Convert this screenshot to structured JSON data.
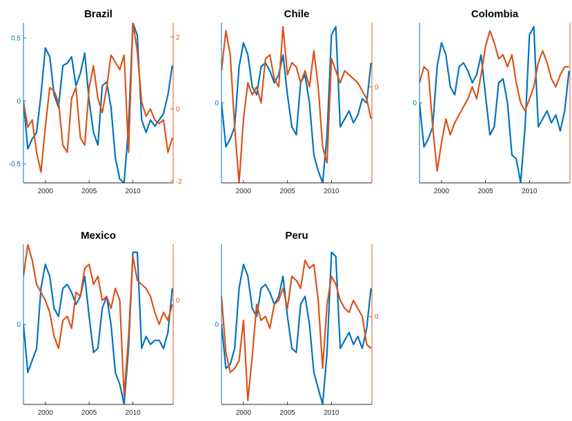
{
  "colors": {
    "left_series": "#0072BD",
    "right_series": "#D95319",
    "axes_frame": "#262626"
  },
  "chart_data": [
    {
      "type": "line",
      "title": "Brazil",
      "x_range": [
        1997.5,
        2014.6
      ],
      "x_ticks": [
        2000,
        2005,
        2010
      ],
      "left_axis": {
        "range": [
          -0.65,
          0.62
        ],
        "ticks": [
          0.5,
          0,
          -0.5
        ],
        "tick_labels": [
          "0.5",
          "0",
          "-0.5"
        ],
        "color": "#0072BD"
      },
      "right_axis": {
        "range": [
          -2.05,
          2.4
        ],
        "ticks": [
          2,
          0,
          -2
        ],
        "tick_labels": [
          "2",
          "0",
          "-2"
        ],
        "color": "#D95319"
      },
      "series": [
        {
          "axis": "left",
          "color": "#0072BD",
          "x": [
            1997.5,
            1998,
            1998.5,
            1999,
            1999.5,
            2000,
            2000.5,
            2001,
            2001.5,
            2002,
            2002.5,
            2003,
            2003.5,
            2004,
            2004.5,
            2005,
            2005.5,
            2006,
            2006.5,
            2007,
            2007.5,
            2008,
            2008.5,
            2009,
            2009.5,
            2010,
            2010.5,
            2011,
            2011.5,
            2012,
            2012.5,
            2013,
            2013.5,
            2014,
            2014.5
          ],
          "y": [
            0.0,
            -0.38,
            -0.3,
            -0.25,
            0.05,
            0.42,
            0.35,
            0.05,
            -0.05,
            0.28,
            0.3,
            0.35,
            0.12,
            0.22,
            0.38,
            0.0,
            -0.25,
            -0.35,
            0.12,
            0.15,
            -0.05,
            -0.45,
            -0.62,
            -0.65,
            -0.2,
            0.62,
            0.52,
            -0.15,
            -0.25,
            -0.15,
            -0.2,
            -0.15,
            -0.1,
            0.05,
            0.28
          ]
        },
        {
          "axis": "right",
          "color": "#D95319",
          "x": [
            1997.5,
            1998,
            1998.5,
            1999,
            1999.5,
            2000,
            2000.5,
            2001,
            2001.5,
            2002,
            2002.5,
            2003,
            2003.5,
            2004,
            2004.5,
            2005,
            2005.5,
            2006,
            2006.5,
            2007,
            2007.5,
            2008,
            2008.5,
            2009,
            2009.5,
            2010,
            2010.5,
            2011,
            2011.5,
            2012,
            2012.5,
            2013,
            2013.5,
            2014,
            2014.5
          ],
          "y": [
            0.2,
            -0.5,
            -0.3,
            -1.2,
            -1.75,
            -0.5,
            0.6,
            0.5,
            0.2,
            -1.0,
            -1.2,
            0.3,
            0.6,
            -0.8,
            -1.0,
            0.6,
            1.2,
            0.3,
            -0.1,
            0.6,
            1.5,
            1.3,
            1.1,
            1.5,
            -1.2,
            2.4,
            1.6,
            0.2,
            -0.2,
            0.0,
            -0.3,
            -0.4,
            -0.3,
            -1.2,
            -0.8
          ]
        }
      ]
    },
    {
      "type": "line",
      "title": "Chile",
      "x_range": [
        1997.5,
        2014.6
      ],
      "x_ticks": [
        2000,
        2005,
        2010
      ],
      "left_axis": {
        "range": [
          -1.0,
          1.0
        ],
        "ticks": [
          0
        ],
        "tick_labels": [
          "0"
        ],
        "color": "#0072BD"
      },
      "right_axis": {
        "range": [
          -1.0,
          1.0
        ],
        "ticks": [
          0.2
        ],
        "tick_labels": [
          "0"
        ],
        "color": "#D95319"
      },
      "series": [
        {
          "axis": "left",
          "color": "#0072BD",
          "x": [
            1997.5,
            1998,
            1998.5,
            1999,
            1999.5,
            2000,
            2000.5,
            2001,
            2001.5,
            2002,
            2002.5,
            2003,
            2003.5,
            2004,
            2004.5,
            2005,
            2005.5,
            2006,
            2006.5,
            2007,
            2007.5,
            2008,
            2008.5,
            2009,
            2009.5,
            2010,
            2010.5,
            2011,
            2011.5,
            2012,
            2012.5,
            2013,
            2013.5,
            2014,
            2014.5
          ],
          "y": [
            0.0,
            -0.55,
            -0.45,
            -0.3,
            0.45,
            0.75,
            0.6,
            0.2,
            0.1,
            0.45,
            0.5,
            0.4,
            0.25,
            0.35,
            0.6,
            0.1,
            -0.3,
            -0.4,
            0.25,
            0.35,
            0.0,
            -0.65,
            -0.85,
            -1.0,
            -0.4,
            0.85,
            0.95,
            -0.3,
            -0.2,
            -0.1,
            -0.25,
            -0.15,
            0.05,
            0.0,
            0.5
          ]
        },
        {
          "axis": "right",
          "color": "#D95319",
          "x": [
            1997.5,
            1998,
            1998.5,
            1999,
            1999.5,
            2000,
            2000.5,
            2001,
            2001.5,
            2002,
            2002.5,
            2003,
            2003.5,
            2004,
            2004.5,
            2005,
            2005.5,
            2006,
            2006.5,
            2007,
            2007.5,
            2008,
            2008.5,
            2009,
            2009.5,
            2010,
            2010.5,
            2011,
            2011.5,
            2012,
            2012.5,
            2013,
            2013.5,
            2014,
            2014.5
          ],
          "y": [
            0.4,
            0.9,
            0.6,
            -0.3,
            -1.0,
            -0.2,
            0.25,
            0.1,
            0.2,
            0.0,
            0.55,
            0.6,
            0.3,
            0.2,
            0.95,
            0.35,
            0.5,
            0.45,
            0.25,
            0.4,
            0.2,
            0.65,
            0.2,
            -0.55,
            -0.75,
            0.55,
            0.4,
            0.25,
            0.4,
            0.35,
            0.3,
            0.25,
            0.15,
            0.05,
            -0.2
          ]
        }
      ]
    },
    {
      "type": "line",
      "title": "Colombia",
      "x_range": [
        1997.5,
        2014.6
      ],
      "x_ticks": [
        2000,
        2005,
        2010
      ],
      "left_axis": {
        "range": [
          -1.0,
          1.0
        ],
        "ticks": [
          0
        ],
        "tick_labels": [
          "0"
        ],
        "color": "#0072BD"
      },
      "right_axis": {
        "range": [
          -1.0,
          1.0
        ],
        "ticks": [],
        "tick_labels": [],
        "color": "#D95319"
      },
      "series": [
        {
          "axis": "left",
          "color": "#0072BD",
          "x": [
            1997.5,
            1998,
            1998.5,
            1999,
            1999.5,
            2000,
            2000.5,
            2001,
            2001.5,
            2002,
            2002.5,
            2003,
            2003.5,
            2004,
            2004.5,
            2005,
            2005.5,
            2006,
            2006.5,
            2007,
            2007.5,
            2008,
            2008.5,
            2009,
            2009.5,
            2010,
            2010.5,
            2011,
            2011.5,
            2012,
            2012.5,
            2013,
            2013.5,
            2014,
            2014.5
          ],
          "y": [
            0.0,
            -0.55,
            -0.45,
            -0.3,
            0.45,
            0.75,
            0.6,
            0.2,
            0.1,
            0.45,
            0.5,
            0.4,
            0.25,
            0.35,
            0.6,
            0.1,
            -0.4,
            -0.3,
            0.25,
            0.3,
            0.0,
            -0.65,
            -0.7,
            -1.0,
            -0.3,
            0.85,
            0.95,
            -0.3,
            -0.2,
            -0.1,
            -0.25,
            -0.15,
            -0.35,
            -0.1,
            0.4
          ]
        },
        {
          "axis": "right",
          "color": "#D95319",
          "x": [
            1997.5,
            1998,
            1998.5,
            1999,
            1999.5,
            2000,
            2000.5,
            2001,
            2001.5,
            2002,
            2002.5,
            2003,
            2003.5,
            2004,
            2004.5,
            2005,
            2005.5,
            2006,
            2006.5,
            2007,
            2007.5,
            2008,
            2008.5,
            2009,
            2009.5,
            2010,
            2010.5,
            2011,
            2011.5,
            2012,
            2012.5,
            2013,
            2013.5,
            2014,
            2014.5
          ],
          "y": [
            0.25,
            0.45,
            0.4,
            -0.3,
            -0.85,
            -0.5,
            -0.2,
            -0.4,
            -0.25,
            -0.15,
            -0.05,
            0.05,
            0.2,
            0.05,
            0.35,
            0.7,
            0.9,
            0.75,
            0.55,
            0.6,
            0.45,
            0.6,
            0.25,
            0.0,
            -0.1,
            0.05,
            0.2,
            0.5,
            0.65,
            0.5,
            0.3,
            0.2,
            0.35,
            0.45,
            0.45
          ]
        }
      ]
    },
    {
      "type": "line",
      "title": "Mexico",
      "x_range": [
        1997.5,
        2014.6
      ],
      "x_ticks": [
        2000,
        2005,
        2010
      ],
      "left_axis": {
        "range": [
          -1.0,
          1.0
        ],
        "ticks": [
          0
        ],
        "tick_labels": [
          "0"
        ],
        "color": "#0072BD"
      },
      "right_axis": {
        "range": [
          -1.0,
          1.0
        ],
        "ticks": [
          0.3
        ],
        "tick_labels": [
          "0"
        ],
        "color": "#D95319"
      },
      "series": [
        {
          "axis": "left",
          "color": "#0072BD",
          "x": [
            1997.5,
            1998,
            1998.5,
            1999,
            1999.5,
            2000,
            2000.5,
            2001,
            2001.5,
            2002,
            2002.5,
            2003,
            2003.5,
            2004,
            2004.5,
            2005,
            2005.5,
            2006,
            2006.5,
            2007,
            2007.5,
            2008,
            2008.5,
            2009,
            2009.5,
            2010,
            2010.5,
            2011,
            2011.5,
            2012,
            2012.5,
            2013,
            2013.5,
            2014,
            2014.5
          ],
          "y": [
            0.0,
            -0.6,
            -0.45,
            -0.3,
            0.45,
            0.75,
            0.6,
            0.2,
            0.1,
            0.45,
            0.5,
            0.4,
            0.25,
            0.35,
            0.6,
            0.1,
            -0.35,
            -0.3,
            0.2,
            0.35,
            0.0,
            -0.6,
            -0.75,
            -1.0,
            -0.3,
            0.9,
            0.9,
            -0.3,
            -0.15,
            -0.25,
            -0.2,
            -0.2,
            -0.3,
            -0.1,
            0.45
          ]
        },
        {
          "axis": "right",
          "color": "#D95319",
          "x": [
            1997.5,
            1998,
            1998.5,
            1999,
            1999.5,
            2000,
            2000.5,
            2001,
            2001.5,
            2002,
            2002.5,
            2003,
            2003.5,
            2004,
            2004.5,
            2005,
            2005.5,
            2006,
            2006.5,
            2007,
            2007.5,
            2008,
            2008.5,
            2009,
            2009.5,
            2010,
            2010.5,
            2011,
            2011.5,
            2012,
            2012.5,
            2013,
            2013.5,
            2014,
            2014.5
          ],
          "y": [
            0.6,
            1.0,
            0.8,
            0.5,
            0.4,
            0.3,
            0.15,
            -0.15,
            -0.3,
            0.05,
            0.1,
            -0.05,
            0.4,
            0.35,
            0.7,
            0.75,
            0.5,
            0.6,
            0.3,
            0.35,
            0.2,
            0.45,
            0.3,
            -0.9,
            -0.15,
            0.85,
            0.55,
            0.5,
            0.45,
            0.35,
            0.15,
            0.0,
            0.15,
            0.05,
            0.25
          ]
        }
      ]
    },
    {
      "type": "line",
      "title": "Peru",
      "x_range": [
        1997.5,
        2014.6
      ],
      "x_ticks": [
        2000,
        2005,
        2010
      ],
      "left_axis": {
        "range": [
          -1.0,
          1.0
        ],
        "ticks": [
          0
        ],
        "tick_labels": [
          "0"
        ],
        "color": "#0072BD"
      },
      "right_axis": {
        "range": [
          -1.0,
          1.0
        ],
        "ticks": [
          0.1
        ],
        "tick_labels": [
          "0"
        ],
        "color": "#D95319"
      },
      "series": [
        {
          "axis": "left",
          "color": "#0072BD",
          "x": [
            1997.5,
            1998,
            1998.5,
            1999,
            1999.5,
            2000,
            2000.5,
            2001,
            2001.5,
            2002,
            2002.5,
            2003,
            2003.5,
            2004,
            2004.5,
            2005,
            2005.5,
            2006,
            2006.5,
            2007,
            2007.5,
            2008,
            2008.5,
            2009,
            2009.5,
            2010,
            2010.5,
            2011,
            2011.5,
            2012,
            2012.5,
            2013,
            2013.5,
            2014,
            2014.5
          ],
          "y": [
            0.0,
            -0.55,
            -0.5,
            -0.3,
            0.45,
            0.75,
            0.6,
            0.2,
            0.1,
            0.45,
            0.5,
            0.4,
            0.25,
            0.35,
            0.6,
            0.1,
            -0.3,
            -0.35,
            0.25,
            0.35,
            0.0,
            -0.6,
            -0.8,
            -1.0,
            -0.35,
            0.9,
            0.85,
            -0.3,
            -0.2,
            -0.1,
            -0.25,
            -0.15,
            -0.3,
            -0.05,
            0.45
          ]
        },
        {
          "axis": "right",
          "color": "#D95319",
          "x": [
            1997.5,
            1998,
            1998.5,
            1999,
            1999.5,
            2000,
            2000.5,
            2001,
            2001.5,
            2002,
            2002.5,
            2003,
            2003.5,
            2004,
            2004.5,
            2005,
            2005.5,
            2006,
            2006.5,
            2007,
            2007.5,
            2008,
            2008.5,
            2009,
            2009.5,
            2010,
            2010.5,
            2011,
            2011.5,
            2012,
            2012.5,
            2013,
            2013.5,
            2014,
            2014.5
          ],
          "y": [
            0.35,
            -0.35,
            -0.6,
            -0.55,
            -0.45,
            0.05,
            -0.95,
            -0.4,
            0.25,
            0.05,
            0.1,
            -0.05,
            0.25,
            0.3,
            0.45,
            0.2,
            0.6,
            0.55,
            0.45,
            0.8,
            0.7,
            0.75,
            0.3,
            -0.55,
            0.25,
            0.6,
            0.5,
            0.3,
            0.2,
            0.15,
            0.3,
            0.2,
            0.1,
            -0.25,
            -0.3
          ]
        }
      ]
    }
  ]
}
